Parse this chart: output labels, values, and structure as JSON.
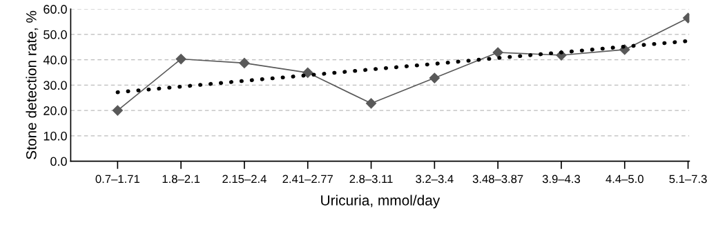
{
  "chart_data": {
    "type": "line",
    "xlabel": "Uricuria, mmol/day",
    "ylabel": "Stone detection rate, %",
    "categories": [
      "0.7–1.71",
      "1.8–2.1",
      "2.15–2.4",
      "2.41–2.77",
      "2.8–3.11",
      "3.2–3.4",
      "3.48–3.87",
      "3.9–4.3",
      "4.4–5.0",
      "5.1–7.3"
    ],
    "series": [
      {
        "color": "#595959",
        "marker": "diamond",
        "line_style": "solid",
        "values": [
          20.0,
          40.3,
          38.7,
          34.9,
          22.8,
          32.8,
          42.9,
          41.8,
          44.0,
          56.5
        ]
      },
      {
        "color": "#000000",
        "marker": "none",
        "line_style": "dotted",
        "values": [
          27.2,
          29.4,
          31.7,
          33.9,
          36.2,
          38.4,
          40.7,
          42.9,
          45.2,
          47.4
        ]
      }
    ],
    "ylim": [
      0,
      60
    ],
    "yticks": [
      {
        "value": 0,
        "label": "0.0"
      },
      {
        "value": 10,
        "label": "10.0"
      },
      {
        "value": 20,
        "label": "20.0"
      },
      {
        "value": 30,
        "label": "30.0"
      },
      {
        "value": 40,
        "label": "40.0"
      },
      {
        "value": 50,
        "label": "50.0"
      },
      {
        "value": 60,
        "label": "60.0"
      }
    ],
    "grid": "y"
  }
}
